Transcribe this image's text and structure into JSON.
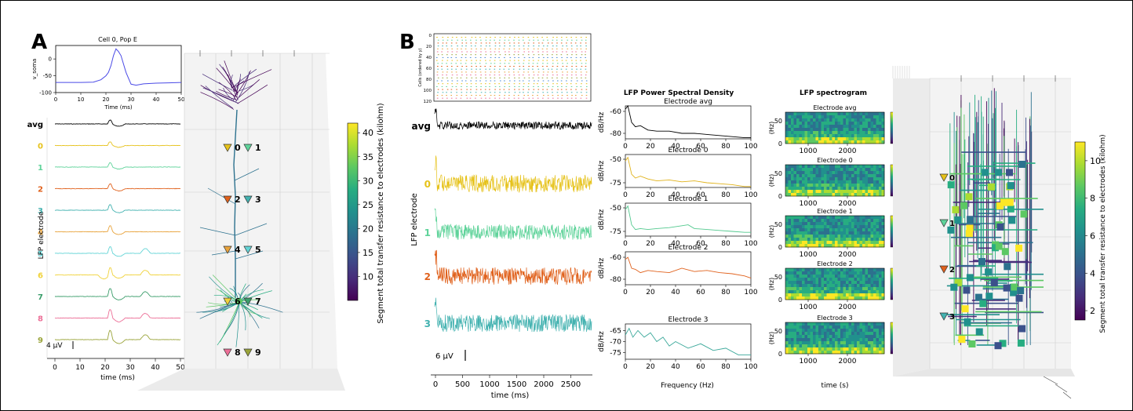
{
  "panels": {
    "a": "A",
    "b": "B"
  },
  "colors": {
    "elec": [
      "#e6c21a",
      "#5fd39a",
      "#e0611c",
      "#43b2b0",
      "#e8a33c",
      "#63d4d6",
      "#f0d23a",
      "#3a9d6a",
      "#ec6f97",
      "#9aa43a"
    ],
    "avg": "#000000",
    "soma_trace": "#4a4ae6",
    "psd": [
      "#e0b21a",
      "#52c98e",
      "#e0611c",
      "#3aa89a"
    ],
    "viridis": [
      "#440154",
      "#472c7a",
      "#3b518b",
      "#2c718e",
      "#21908d",
      "#27ad81",
      "#5cc863",
      "#aadc32",
      "#fde725"
    ]
  },
  "chart_data": [
    {
      "id": "A-soma",
      "type": "line",
      "title": "Cell 0, Pop E",
      "xlabel": "Time (ms)",
      "ylabel": "v_soma",
      "xlim": [
        0,
        50
      ],
      "ylim": [
        -100,
        40
      ],
      "xticks": [
        "0",
        "10",
        "20",
        "30",
        "40",
        "50"
      ],
      "yticks": [
        "0",
        "-50",
        "-100"
      ],
      "x": [
        0,
        5,
        10,
        15,
        18,
        20,
        21,
        22,
        23,
        24,
        25,
        26,
        28,
        30,
        32,
        35,
        40,
        45,
        50
      ],
      "y": [
        -70,
        -70,
        -70,
        -69,
        -62,
        -50,
        -40,
        -20,
        10,
        30,
        22,
        10,
        -40,
        -75,
        -78,
        -74,
        -72,
        -71,
        -70
      ]
    },
    {
      "id": "A-lfp",
      "type": "line",
      "ylabel": "LFP electrode",
      "xlabel": "time (ms)",
      "xticks": [
        "0",
        "10",
        "20",
        "30",
        "40",
        "50"
      ],
      "traces": [
        "avg",
        "0",
        "1",
        "2",
        "3",
        "4",
        "5",
        "6",
        "7",
        "8",
        "9"
      ],
      "scalebar": "4 µV"
    },
    {
      "id": "A-morphology",
      "type": "heatmap",
      "colorbar_label": "Segment total transfer resistance to electrodes (kilohm)",
      "ticks": [
        "10",
        "15",
        "20",
        "25",
        "30",
        "35",
        "40"
      ],
      "range": [
        5,
        42
      ],
      "electrodes": [
        "0",
        "1",
        "2",
        "3",
        "4",
        "5",
        "6",
        "7",
        "8",
        "9"
      ]
    },
    {
      "id": "B-raster",
      "type": "scatter",
      "ylabel": "Cells (ordered by y)",
      "yticks": [
        "0",
        "20",
        "40",
        "60",
        "80",
        "100",
        "120"
      ]
    },
    {
      "id": "B-lfp",
      "type": "line",
      "ylabel": "LFP electrode",
      "xlabel": "time (ms)",
      "xticks": [
        "0",
        "500",
        "1000",
        "1500",
        "2000",
        "2500"
      ],
      "traces": [
        "avg",
        "0",
        "1",
        "2",
        "3"
      ],
      "scalebar": "6 μV"
    },
    {
      "id": "B-psd",
      "type": "line",
      "title": "LFP Power Spectral Density",
      "xlabel": "Frequency (Hz)",
      "xticks": [
        "0",
        "20",
        "40",
        "60",
        "80",
        "100"
      ],
      "ylabel": "dB/Hz",
      "series": [
        {
          "name": "Electrode avg",
          "yticks": [
            "-60",
            "-80"
          ],
          "x": [
            0,
            2,
            5,
            8,
            12,
            18,
            25,
            35,
            45,
            55,
            65,
            75,
            85,
            95,
            100
          ],
          "y": [
            -58,
            -55,
            -70,
            -74,
            -73,
            -77,
            -78,
            -78,
            -80,
            -80,
            -81,
            -82,
            -83,
            -84,
            -84
          ]
        },
        {
          "name": "Electrode 0",
          "yticks": [
            "-50",
            "-75"
          ],
          "x": [
            0,
            2,
            5,
            8,
            12,
            18,
            25,
            35,
            45,
            55,
            65,
            75,
            85,
            95,
            100
          ],
          "y": [
            -52,
            -48,
            -66,
            -70,
            -68,
            -71,
            -73,
            -72,
            -74,
            -73,
            -75,
            -76,
            -77,
            -79,
            -79
          ]
        },
        {
          "name": "Electrode 1",
          "yticks": [
            "-50",
            "-75"
          ],
          "x": [
            0,
            2,
            5,
            8,
            12,
            18,
            25,
            35,
            45,
            50,
            55,
            65,
            75,
            85,
            95,
            100
          ],
          "y": [
            -52,
            -48,
            -68,
            -73,
            -72,
            -73,
            -72,
            -71,
            -69,
            -68,
            -72,
            -73,
            -74,
            -75,
            -76,
            -76
          ]
        },
        {
          "name": "Electrode 2",
          "yticks": [
            "-60",
            "-80"
          ],
          "x": [
            0,
            2,
            5,
            8,
            12,
            18,
            25,
            35,
            45,
            55,
            65,
            75,
            85,
            95,
            100
          ],
          "y": [
            -62,
            -60,
            -70,
            -71,
            -74,
            -72,
            -73,
            -74,
            -70,
            -73,
            -72,
            -74,
            -75,
            -77,
            -79
          ]
        },
        {
          "name": "Electrode 3",
          "yticks": [
            "-65",
            "-70",
            "-75"
          ],
          "x": [
            0,
            3,
            6,
            10,
            15,
            20,
            25,
            30,
            35,
            40,
            50,
            60,
            70,
            80,
            90,
            100
          ],
          "y": [
            -67,
            -64,
            -68,
            -65,
            -68,
            -66,
            -70,
            -68,
            -72,
            -70,
            -73,
            -71,
            -74,
            -73,
            -76,
            -76
          ]
        }
      ]
    },
    {
      "id": "B-spectrogram",
      "type": "heatmap",
      "title": "LFP spectrogram",
      "xlabel": "time (s)",
      "ylabel": "(Hz)",
      "xticks": [
        "1000",
        "2000"
      ],
      "yticks": [
        "50",
        "0"
      ],
      "colorbar_label": "dB/Hz",
      "colorbar_ticks": [
        "-49",
        "-116"
      ],
      "panels": [
        "Electrode avg",
        "Electrode 0",
        "Electrode 1",
        "Electrode 2",
        "Electrode 3"
      ]
    },
    {
      "id": "B-morphology",
      "type": "heatmap",
      "colorbar_label": "Segment total transfer resistance to electrodes (kilohm)",
      "ticks": [
        "2",
        "4",
        "6",
        "8",
        "10"
      ],
      "range": [
        1.5,
        11
      ],
      "electrodes": [
        "0",
        "1",
        "2",
        "3"
      ]
    }
  ]
}
